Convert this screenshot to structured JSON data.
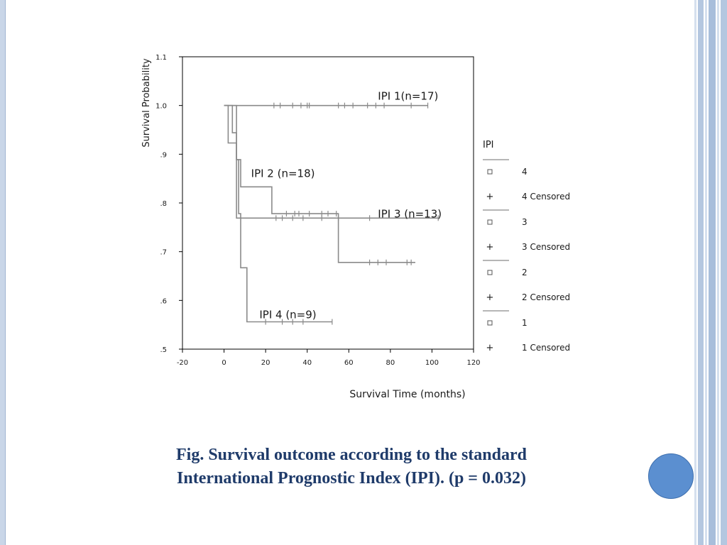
{
  "caption": {
    "line1": "Fig. Survival outcome according to the standard",
    "line2": "International Prognostic Index (IPI). (p = 0.032)"
  },
  "colors": {
    "caption": "#1f3b6a",
    "accent_circle": "#5b8fd0",
    "border": "#c9d6e8",
    "curve": "#8a8a8a"
  },
  "chart_data": {
    "type": "line",
    "subtype": "kaplan-meier",
    "xlabel": "Survival Time (months)",
    "ylabel": "Survival Probability",
    "xlim": [
      -20,
      120
    ],
    "ylim": [
      0.5,
      1.1
    ],
    "xticks": [
      -20,
      0,
      20,
      40,
      60,
      80,
      100,
      120
    ],
    "yticks": [
      0.5,
      0.6,
      0.7,
      0.8,
      0.9,
      1.0,
      1.1
    ],
    "ytick_labels": [
      ".5",
      ".6",
      ".7",
      ".8",
      ".9",
      "1.0",
      "1.1"
    ],
    "grid": false,
    "legend": {
      "title": "IPI",
      "position": "right",
      "entries": [
        "4",
        "4 Censored",
        "3",
        "3 Censored",
        "2",
        "2 Censored",
        "1",
        "1 Censored"
      ]
    },
    "series": [
      {
        "name": "1",
        "label": "IPI 1(n=17)",
        "steps": [
          [
            0,
            1.0
          ],
          [
            98,
            1.0
          ]
        ],
        "censored_x": [
          24,
          27,
          33,
          37,
          40,
          41,
          55,
          58,
          62,
          69,
          73,
          77,
          90,
          98
        ]
      },
      {
        "name": "2",
        "label": "IPI 2 (n=18)",
        "steps": [
          [
            0,
            1.0
          ],
          [
            4,
            1.0
          ],
          [
            4,
            0.944
          ],
          [
            6,
            0.944
          ],
          [
            6,
            0.889
          ],
          [
            8,
            0.889
          ],
          [
            8,
            0.833
          ],
          [
            23,
            0.833
          ],
          [
            23,
            0.778
          ],
          [
            55,
            0.778
          ],
          [
            55,
            0.678
          ],
          [
            92,
            0.678
          ]
        ],
        "censored_x": [
          30,
          34,
          36,
          41,
          47,
          50,
          54,
          70,
          74,
          78,
          88,
          90
        ]
      },
      {
        "name": "3",
        "label": "IPI 3 (n=13)",
        "steps": [
          [
            0,
            1.0
          ],
          [
            2,
            1.0
          ],
          [
            2,
            0.923
          ],
          [
            6,
            0.923
          ],
          [
            6,
            0.769
          ],
          [
            103,
            0.769
          ]
        ],
        "censored_x": [
          25,
          28,
          33,
          38,
          47,
          55,
          70,
          103
        ]
      },
      {
        "name": "4",
        "label": "IPI 4 (n=9)",
        "steps": [
          [
            0,
            1.0
          ],
          [
            6,
            1.0
          ],
          [
            6,
            0.889
          ],
          [
            7,
            0.889
          ],
          [
            7,
            0.778
          ],
          [
            8,
            0.778
          ],
          [
            8,
            0.667
          ],
          [
            11,
            0.667
          ],
          [
            11,
            0.556
          ],
          [
            52,
            0.556
          ]
        ],
        "censored_x": [
          20,
          28,
          33,
          38,
          52
        ]
      }
    ],
    "annotations": [
      {
        "text": "IPI 1(n=17)",
        "x": 74,
        "y": 1.012
      },
      {
        "text": "IPI 2 (n=18)",
        "x": 13,
        "y": 0.853
      },
      {
        "text": "IPI 3 (n=13)",
        "x": 74,
        "y": 0.77
      },
      {
        "text": "IPI 4 (n=9)",
        "x": 17,
        "y": 0.563
      }
    ]
  }
}
